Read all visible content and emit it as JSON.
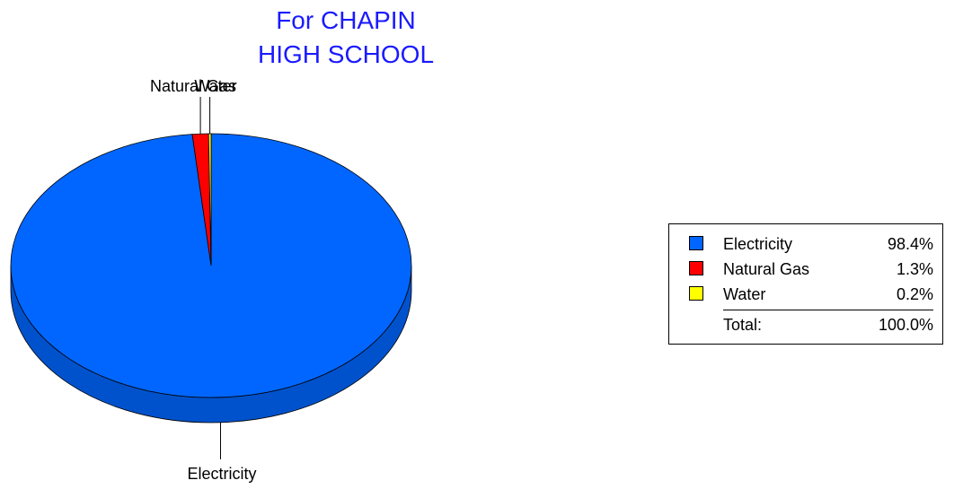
{
  "chart_data": {
    "type": "pie",
    "title_lines": [
      "For CHAPIN",
      "HIGH SCHOOL"
    ],
    "slices": [
      {
        "name": "Electricity",
        "value": 98.4,
        "label": "98.4%",
        "color": "#0066ff",
        "side_color": "#0052cc"
      },
      {
        "name": "Natural Gas",
        "value": 1.3,
        "label": "1.3%",
        "color": "#ff0000",
        "side_color": "#cc0000"
      },
      {
        "name": "Water",
        "value": 0.2,
        "label": "0.2%",
        "color": "#ffff00",
        "side_color": "#cccc00"
      }
    ],
    "total_label": "Total:",
    "total_value": "100.0%",
    "legend_position": "right",
    "title_color": "#1a1aff"
  }
}
